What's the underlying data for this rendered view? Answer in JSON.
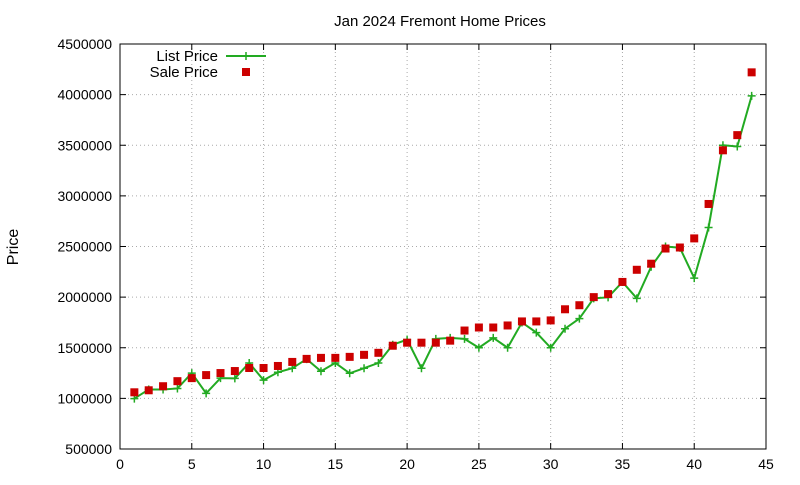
{
  "chart_data": {
    "type": "line",
    "title": "Jan 2024 Fremont Home Prices",
    "xlabel": "",
    "ylabel": "Price",
    "xlim": [
      0,
      45
    ],
    "ylim": [
      500000,
      4500000
    ],
    "xticks": [
      0,
      5,
      10,
      15,
      20,
      25,
      30,
      35,
      40,
      45
    ],
    "yticks": [
      500000,
      1000000,
      1500000,
      2000000,
      2500000,
      3000000,
      3500000,
      4000000,
      4500000
    ],
    "grid": true,
    "legend_position": "top-left",
    "series": [
      {
        "name": "List Price",
        "style": "line-with-plus-markers",
        "color": "#22aa22",
        "x": [
          1,
          2,
          3,
          4,
          5,
          6,
          7,
          8,
          9,
          10,
          11,
          12,
          13,
          14,
          15,
          16,
          17,
          18,
          19,
          20,
          21,
          22,
          23,
          24,
          25,
          26,
          27,
          28,
          29,
          30,
          31,
          32,
          33,
          34,
          35,
          36,
          37,
          38,
          39,
          40,
          41,
          42,
          43,
          44
        ],
        "values": [
          998000,
          1088000,
          1088000,
          1098000,
          1250000,
          1050000,
          1200000,
          1198000,
          1350000,
          1180000,
          1258000,
          1298000,
          1388000,
          1268000,
          1350000,
          1248000,
          1298000,
          1350000,
          1530000,
          1580000,
          1298000,
          1588000,
          1598000,
          1588000,
          1500000,
          1598000,
          1500000,
          1750000,
          1650000,
          1500000,
          1688000,
          1788000,
          1988000,
          1998000,
          2150000,
          1988000,
          2300000,
          2500000,
          2488000,
          2188000,
          2688000,
          3500000,
          3488000,
          3988000
        ]
      },
      {
        "name": "Sale Price",
        "style": "square-markers",
        "color": "#cc0000",
        "x": [
          1,
          2,
          3,
          4,
          5,
          6,
          7,
          8,
          9,
          10,
          11,
          12,
          13,
          14,
          15,
          16,
          17,
          18,
          19,
          20,
          21,
          22,
          23,
          24,
          25,
          26,
          27,
          28,
          29,
          30,
          31,
          32,
          33,
          34,
          35,
          36,
          37,
          38,
          39,
          40,
          41,
          42,
          43,
          44
        ],
        "values": [
          1060000,
          1080000,
          1120000,
          1170000,
          1200000,
          1230000,
          1250000,
          1270000,
          1300000,
          1300000,
          1320000,
          1360000,
          1390000,
          1400000,
          1400000,
          1410000,
          1430000,
          1450000,
          1520000,
          1550000,
          1550000,
          1550000,
          1570000,
          1670000,
          1700000,
          1700000,
          1720000,
          1760000,
          1760000,
          1770000,
          1880000,
          1920000,
          2000000,
          2030000,
          2150000,
          2270000,
          2330000,
          2480000,
          2490000,
          2580000,
          2920000,
          3450000,
          3600000,
          4220000
        ]
      }
    ]
  }
}
